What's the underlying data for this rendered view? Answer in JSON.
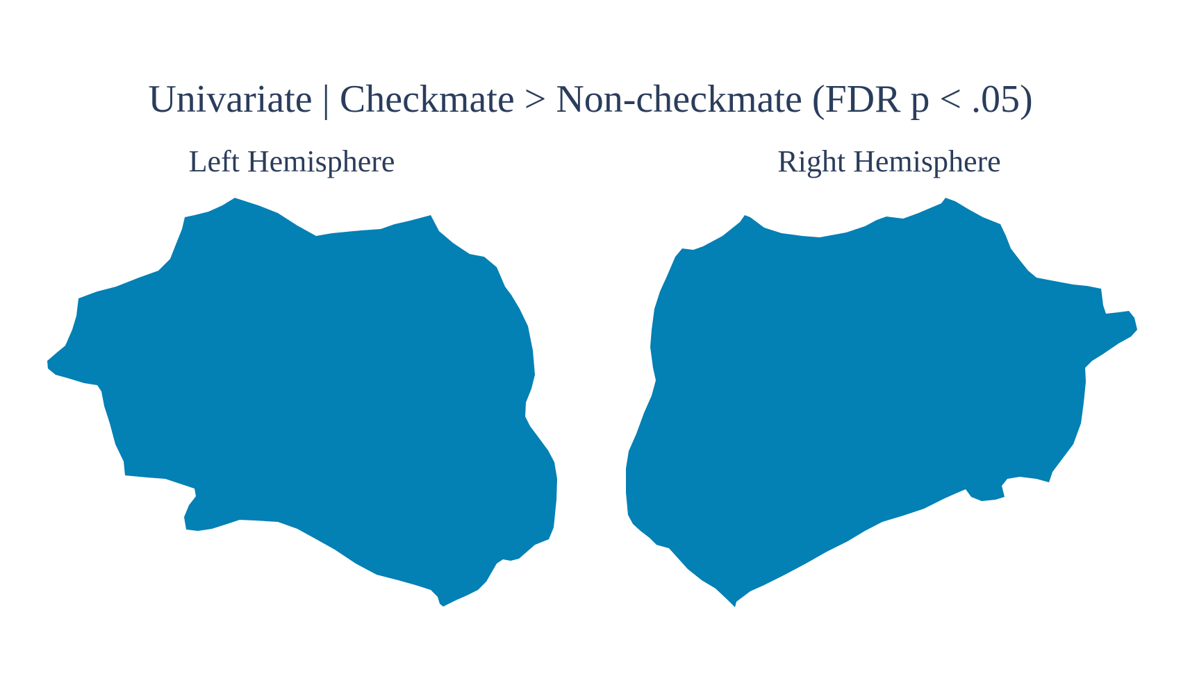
{
  "title": "Univariate | Checkmate > Non-checkmate (FDR p < .05)",
  "hemispheres": {
    "left": {
      "label": "Left Hemisphere"
    },
    "right": {
      "label": "Right Hemisphere"
    }
  },
  "colors": {
    "surface_fill": "#0380b4",
    "text": "#2b3d5b",
    "background": "#ffffff"
  }
}
